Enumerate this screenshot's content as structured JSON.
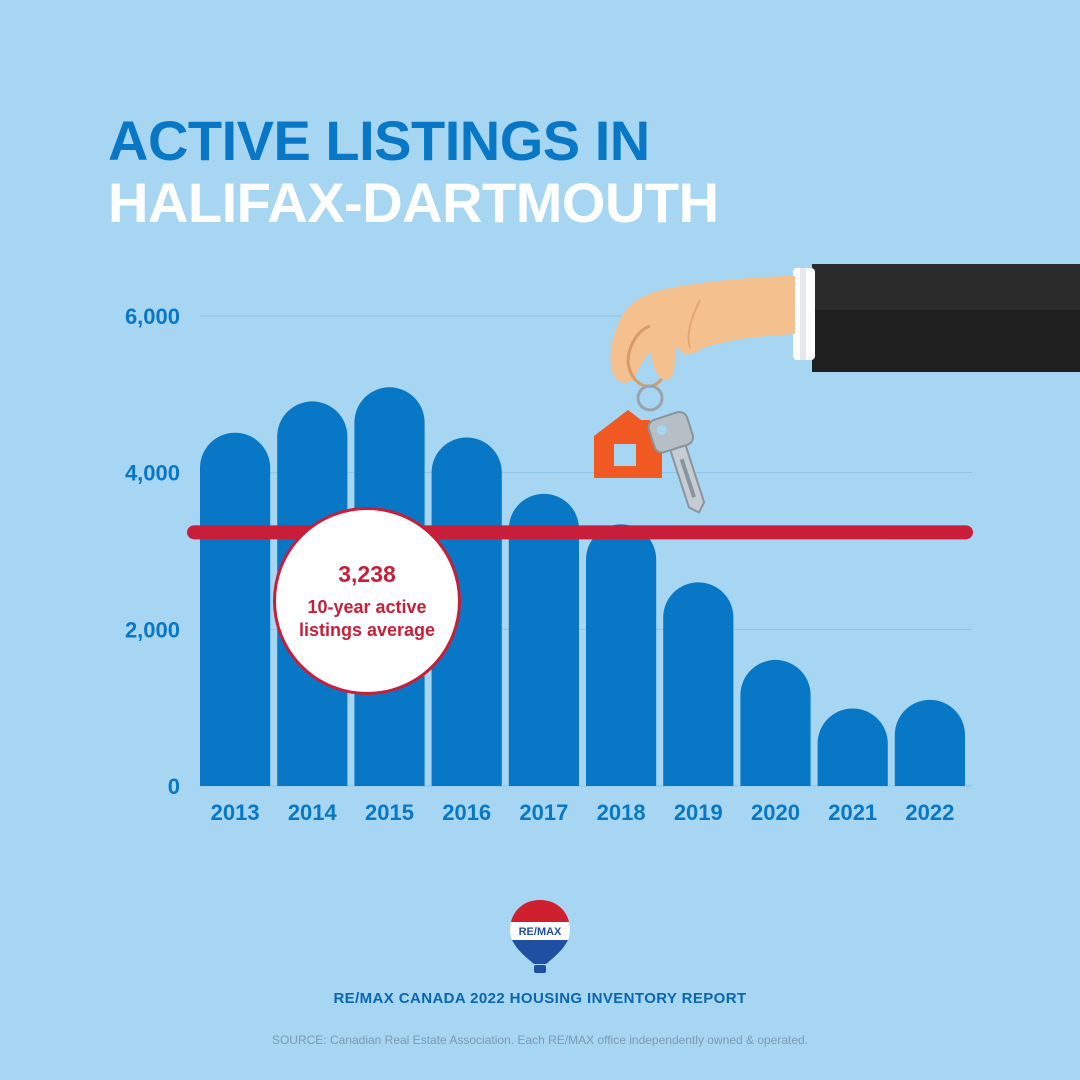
{
  "title": {
    "line1": "ACTIVE LISTINGS IN",
    "line2": "HALIFAX-DARTMOUTH"
  },
  "colors": {
    "background": "#a7d6f2",
    "bar": "#0878c6",
    "average_line": "#c81e3a",
    "grid": "#8cc3e8"
  },
  "chart_data": {
    "type": "bar",
    "categories": [
      "2013",
      "2014",
      "2015",
      "2016",
      "2017",
      "2018",
      "2019",
      "2020",
      "2021",
      "2022"
    ],
    "values": [
      4510,
      4910,
      5090,
      4450,
      3730,
      3340,
      2600,
      1610,
      990,
      1100
    ],
    "y_ticks": [
      "6,000",
      "4,000",
      "2,000",
      "0"
    ],
    "ylim": [
      0,
      6000
    ],
    "grid": true,
    "average": {
      "value": 3238,
      "value_label": "3,238",
      "label": "10-year active listings average"
    }
  },
  "illustration": {
    "hand_icon": "hand-holding-keys-icon",
    "keychain_icon": "house-keychain-icon",
    "key_icon": "key-icon"
  },
  "footer": {
    "logo_text": "RE/MAX",
    "report": "RE/MAX CANADA 2022 HOUSING INVENTORY REPORT",
    "source": "SOURCE: Canadian Real Estate Association. Each RE/MAX office independently owned & operated."
  }
}
